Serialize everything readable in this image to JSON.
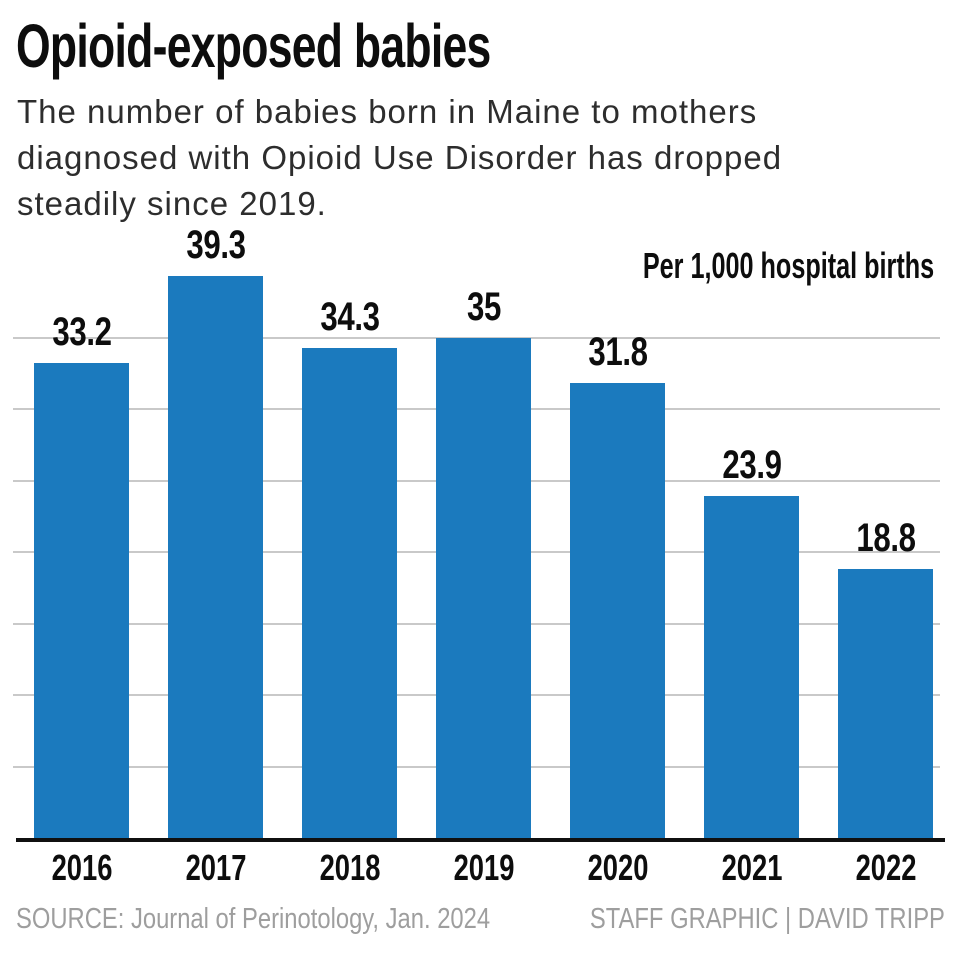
{
  "header": {
    "title": "Opioid-exposed babies",
    "subtitle": "The number of babies born in Maine to mothers\ndiagnosed with Opioid Use Disorder has dropped\nsteadily since 2019."
  },
  "chart_data": {
    "type": "bar",
    "title": "Opioid-exposed babies",
    "unit_label": "Per 1,000 hospital births",
    "categories": [
      "2016",
      "2017",
      "2018",
      "2019",
      "2020",
      "2021",
      "2022"
    ],
    "values": [
      33.2,
      39.3,
      34.3,
      35,
      31.8,
      23.9,
      18.8
    ],
    "value_labels": [
      "33.2",
      "39.3",
      "34.3",
      "35",
      "31.8",
      "23.9",
      "18.8"
    ],
    "ylim": [
      0,
      40
    ],
    "gridline_step": 5,
    "grid": true,
    "legend_position": "top-right",
    "bar_color": "#1b7abe",
    "gridline_color": "#c9c9c9",
    "axis_color": "#101010"
  },
  "footer": {
    "source": "SOURCE: Journal of Perinotology, Jan. 2024",
    "credit": "STAFF GRAPHIC | DAVID TRIPP"
  }
}
